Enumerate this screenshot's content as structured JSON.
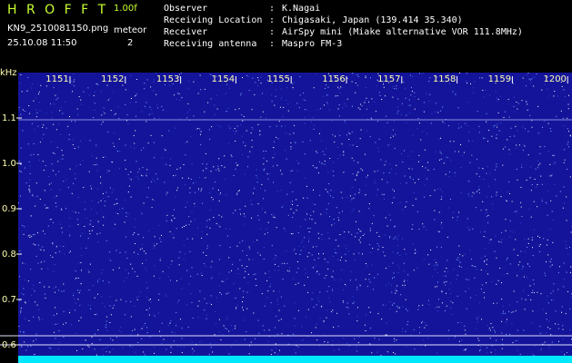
{
  "header": {
    "app": "H R O F F T",
    "version": "1.00f",
    "filename": "KN9_2510081150.png",
    "mode": "meteor",
    "count": "2",
    "datetime": "25.10.08 11:50"
  },
  "separator": ":",
  "info": [
    {
      "label": "Observer",
      "value": "K.Nagai"
    },
    {
      "label": "Receiving Location",
      "value": "Chigasaki, Japan (139.414 35.340)"
    },
    {
      "label": "Receiver",
      "value": "AirSpy mini (Miake alternative VOR 111.8MHz)"
    },
    {
      "label": "Receiving antenna",
      "value": "Maspro FM-3"
    }
  ],
  "axis": {
    "unit": "kHz",
    "x_labels": [
      "1151",
      "1152",
      "1153",
      "1154",
      "1155",
      "1156",
      "1157",
      "1158",
      "1159",
      "1200"
    ],
    "y_labels": [
      "1.1",
      "1.0",
      "0.9",
      "0.8",
      "0.7",
      "0.6"
    ]
  }
}
